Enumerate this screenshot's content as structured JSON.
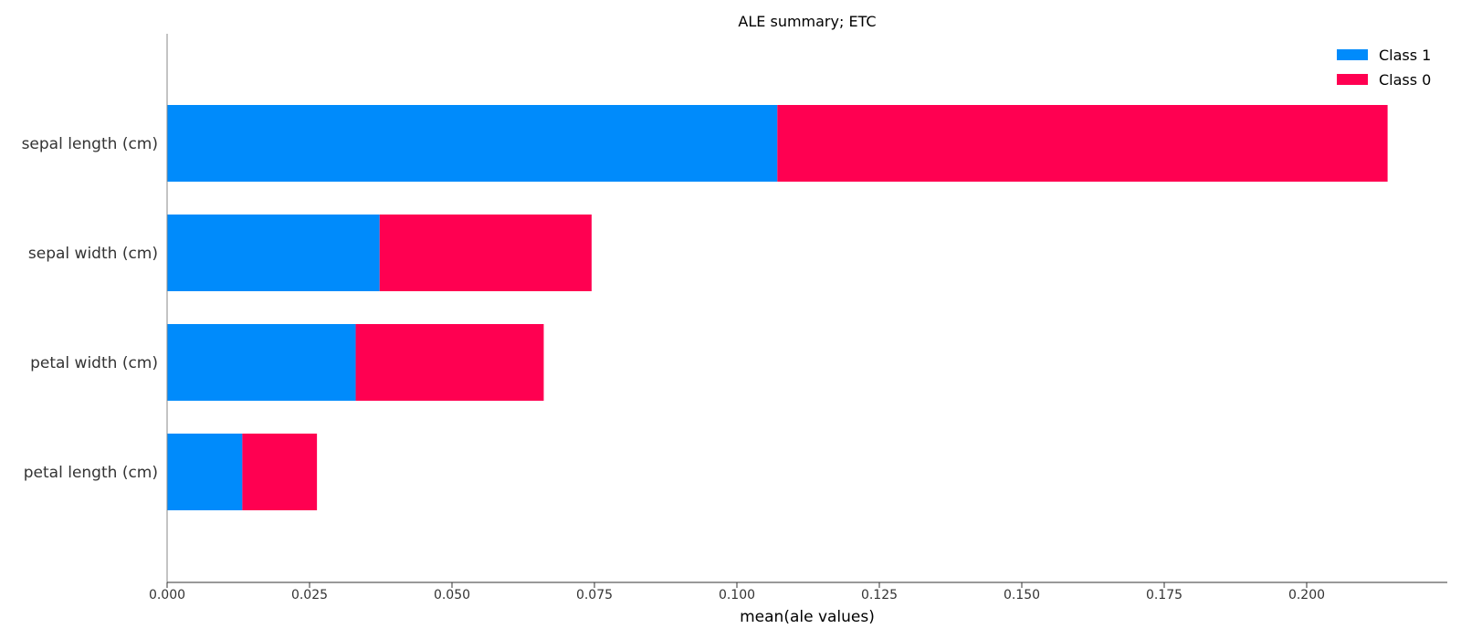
{
  "chart_data": {
    "type": "bar",
    "orientation": "horizontal",
    "stacked": true,
    "title": "ALE summary; ETC",
    "xlabel": "mean(ale values)",
    "ylabel": "",
    "categories": [
      "sepal length (cm)",
      "sepal width (cm)",
      "petal width (cm)",
      "petal length (cm)"
    ],
    "series": [
      {
        "name": "Class 1",
        "color": "#008bfb",
        "values": [
          0.1071,
          0.0373,
          0.0331,
          0.0132
        ]
      },
      {
        "name": "Class 0",
        "color": "#ff0051",
        "values": [
          0.1071,
          0.0372,
          0.033,
          0.0131
        ]
      }
    ],
    "xlim": [
      0,
      0.225
    ],
    "xticks": [
      0.0,
      0.025,
      0.05,
      0.075,
      0.1,
      0.125,
      0.15,
      0.175,
      0.2
    ],
    "xtick_labels": [
      "0.000",
      "0.025",
      "0.050",
      "0.075",
      "0.100",
      "0.125",
      "0.150",
      "0.175",
      "0.200"
    ],
    "legend_entries": [
      "Class 1",
      "Class 0"
    ],
    "legend_position": "top-right",
    "grid": false
  }
}
